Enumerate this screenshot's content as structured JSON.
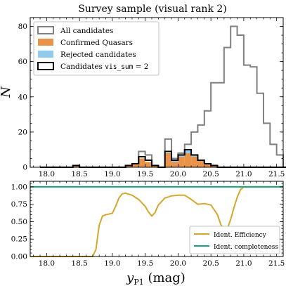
{
  "chart_data": [
    {
      "type": "histogram",
      "title": "Survey sample (visual rank 2)",
      "ylabel": "N",
      "xlim": [
        17.75,
        21.6
      ],
      "ylim": [
        0,
        85
      ],
      "yticks": [
        0,
        20,
        40,
        60,
        80
      ],
      "xticks": [
        "18.0",
        "18.5",
        "19.0",
        "19.5",
        "20.0",
        "20.5",
        "21.0",
        "21.5"
      ],
      "bin_width": 0.1,
      "bin_start": 17.9,
      "legend_position": "top-left",
      "series": [
        {
          "name": "All candidates",
          "style": "step",
          "color": "#808080",
          "values": [
            0,
            0,
            0,
            0,
            0,
            1,
            0,
            0,
            0,
            0,
            0,
            0,
            0,
            1,
            2,
            9,
            7,
            1,
            0,
            16,
            5,
            8,
            13,
            20,
            24,
            32,
            48,
            48,
            68,
            80,
            75,
            58,
            57,
            42,
            25,
            13,
            7,
            0
          ]
        },
        {
          "name": "Confirmed Quasars",
          "style": "filled",
          "color": "#e8924a",
          "values": [
            0,
            0,
            0,
            0,
            0,
            1,
            0,
            0,
            0,
            0,
            0,
            0,
            0,
            1,
            2,
            5,
            3,
            1,
            0,
            8,
            3,
            6,
            8,
            6,
            4,
            2,
            1,
            0,
            0,
            0,
            0,
            0,
            0,
            0,
            0,
            0,
            0,
            0
          ]
        },
        {
          "name": "Rejected candidates",
          "style": "filled",
          "color": "#8ecbef",
          "values": [
            0,
            0,
            0,
            0,
            0,
            0,
            0,
            0,
            0,
            0,
            0,
            0,
            0,
            0,
            0,
            0,
            0,
            0,
            0,
            0,
            1,
            1,
            2,
            1,
            0,
            0,
            0,
            0,
            0,
            0,
            0,
            0,
            0,
            0,
            0,
            0,
            0,
            0
          ]
        },
        {
          "name": "Candidates vis_sum = 2",
          "style": "step",
          "color": "#000000",
          "values": [
            0,
            0,
            0,
            0,
            0,
            1,
            0,
            0,
            0,
            0,
            0,
            0,
            0,
            1,
            2,
            6,
            4,
            1,
            0,
            9,
            4,
            7,
            10,
            7,
            4,
            2,
            1,
            0,
            0,
            0,
            0,
            0,
            0,
            0,
            0,
            0,
            0,
            0
          ]
        }
      ]
    },
    {
      "type": "line",
      "xlabel": "y_P1 (mag)",
      "xlim": [
        17.75,
        21.6
      ],
      "ylim": [
        0,
        1.08
      ],
      "yticks": [
        "0.00",
        "0.25",
        "0.50",
        "0.75",
        "1.00"
      ],
      "xticks": [
        "18.0",
        "18.5",
        "19.0",
        "19.5",
        "20.0",
        "20.5",
        "21.0",
        "21.5"
      ],
      "legend_position": "bottom-right",
      "series": [
        {
          "name": "Ident. Efficiency",
          "color": "#d4a72c",
          "x": [
            17.75,
            18.6,
            18.7,
            18.75,
            18.8,
            18.85,
            18.9,
            19.0,
            19.05,
            19.1,
            19.15,
            19.2,
            19.3,
            19.4,
            19.5,
            19.55,
            19.6,
            19.65,
            19.7,
            19.8,
            19.9,
            20.0,
            20.1,
            20.2,
            20.3,
            20.4,
            20.5,
            20.6,
            20.65,
            20.7,
            20.75,
            20.8,
            20.85,
            20.9,
            20.95,
            21.0,
            21.05,
            21.1,
            21.6
          ],
          "y": [
            0,
            0,
            0,
            0.1,
            0.45,
            0.58,
            0.6,
            0.62,
            0.72,
            0.84,
            0.9,
            0.91,
            0.88,
            0.82,
            0.72,
            0.64,
            0.58,
            0.63,
            0.74,
            0.84,
            0.87,
            0.88,
            0.88,
            0.82,
            0.75,
            0.76,
            0.74,
            0.6,
            0.46,
            0.38,
            0.4,
            0.53,
            0.7,
            0.85,
            0.96,
            1.0,
            1.0,
            1.0,
            1.0
          ]
        },
        {
          "name": "Ident. completeness",
          "color": "#1aa37a",
          "x": [
            17.75,
            21.6
          ],
          "y": [
            1.0,
            1.0
          ]
        }
      ]
    }
  ],
  "top": {
    "title": "Survey sample (visual rank 2)",
    "ylabel": "N",
    "legend": {
      "all": "All candidates",
      "confirmed": "Confirmed Quasars",
      "rejected": "Rejected candidates",
      "vis_prefix": "Candidates ",
      "vis_code": "vis_sum",
      "vis_suffix": " = 2"
    },
    "yticks": [
      "0",
      "20",
      "40",
      "60",
      "80"
    ],
    "xticks": [
      "18.0",
      "18.5",
      "19.0",
      "19.5",
      "20.0",
      "20.5",
      "21.0",
      "21.5"
    ]
  },
  "bottom": {
    "xlabel_main": "y",
    "xlabel_sub": "P1",
    "xlabel_unit": " (mag)",
    "legend": {
      "eff": "Ident. Efficiency",
      "comp": "Ident. completeness"
    },
    "yticks": [
      "0.00",
      "0.25",
      "0.50",
      "0.75",
      "1.00"
    ],
    "xticks": [
      "18.0",
      "18.5",
      "19.0",
      "19.5",
      "20.0",
      "20.5",
      "21.0",
      "21.5"
    ]
  },
  "colors": {
    "all": "#808080",
    "confirmed": "#e8924a",
    "rejected": "#8ecbef",
    "vis": "#000000",
    "efficiency": "#d4a72c",
    "completeness": "#1aa37a"
  }
}
